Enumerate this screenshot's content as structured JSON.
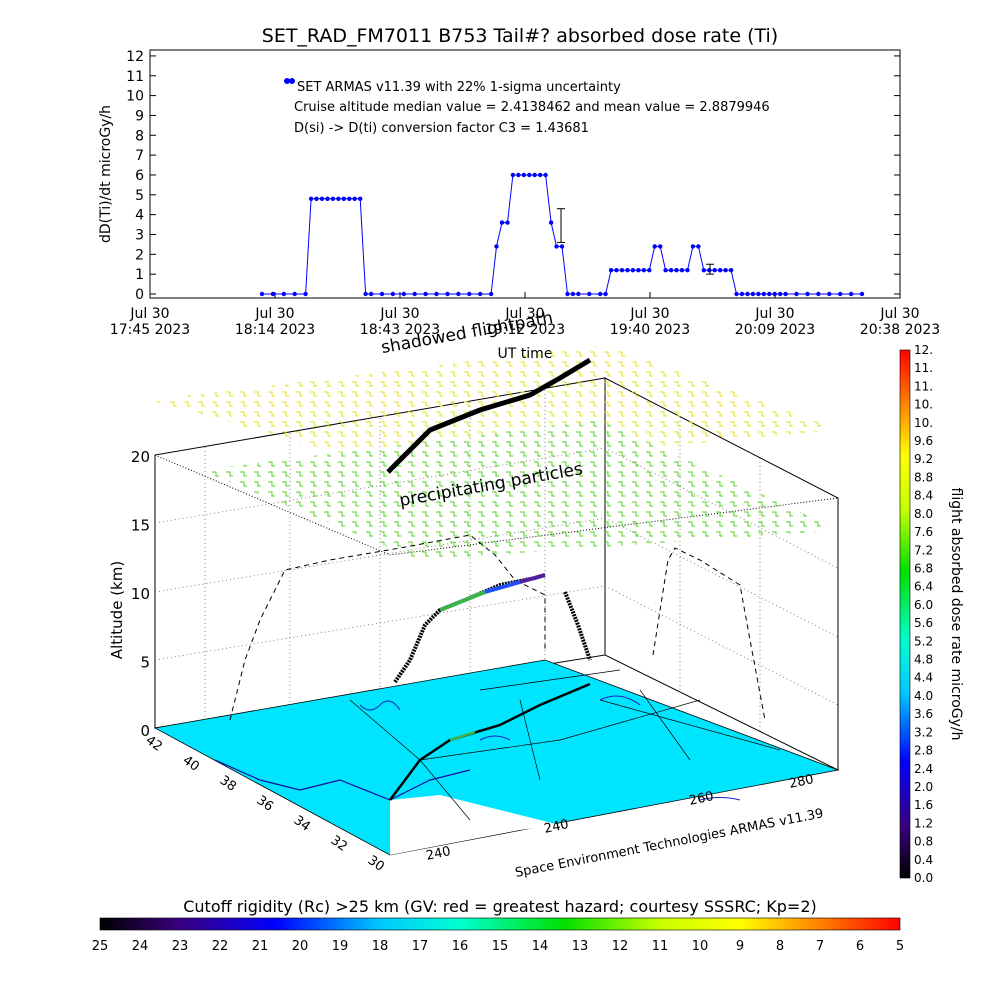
{
  "chart_data": [
    {
      "type": "line",
      "title": "SET_RAD_FM7011  B753 Tail#? absorbed dose rate (Ti)",
      "ylabel": "dD(Ti)/dt microGy/h",
      "xlabel": "UT time",
      "ylim": [
        0,
        12
      ],
      "yticks": [
        "0",
        "1",
        "2",
        "3",
        "4",
        "5",
        "6",
        "7",
        "8",
        "9",
        "10",
        "11",
        "12"
      ],
      "xticks": [
        {
          "top": "Jul 30",
          "bottom": "17:45 2023"
        },
        {
          "top": "Jul 30",
          "bottom": "18:14 2023"
        },
        {
          "top": "Jul 30",
          "bottom": "18:43 2023"
        },
        {
          "top": "Jul 30",
          "bottom": "19:12 2023"
        },
        {
          "top": "Jul 30",
          "bottom": "19:40 2023"
        },
        {
          "top": "Jul 30",
          "bottom": "20:09 2023"
        },
        {
          "top": "Jul 30",
          "bottom": "20:38 2023"
        }
      ],
      "x_minutes_range": [
        0,
        173
      ],
      "series": [
        {
          "name": "SET ARMAS v11.39 with 22% 1-sigma uncertainty",
          "color": "#0000ff",
          "x_minutes": [
            22,
            26,
            30,
            34,
            38,
            40,
            42,
            44,
            46,
            48,
            50,
            52,
            54,
            56,
            58,
            60,
            62,
            66,
            70,
            74,
            78,
            82,
            86,
            90,
            94,
            98,
            102,
            106,
            108,
            110,
            112,
            114,
            116,
            118,
            120,
            122,
            124,
            126,
            128,
            130,
            132,
            134,
            136,
            138,
            142,
            146,
            148,
            150,
            152,
            154,
            156,
            158,
            160,
            162,
            164,
            166,
            168,
            170,
            172,
            174,
            176,
            178,
            180,
            182,
            184,
            186,
            188,
            190,
            192,
            194,
            196,
            198,
            200,
            202,
            204,
            206,
            208,
            210,
            212,
            214,
            218,
            222,
            226,
            230,
            234,
            238,
            242
          ],
          "y": [
            0,
            0,
            0,
            0,
            0,
            4.8,
            4.8,
            4.8,
            4.8,
            4.8,
            4.8,
            4.8,
            4.8,
            4.8,
            4.8,
            0,
            0,
            0,
            0,
            0,
            0,
            0,
            0,
            0,
            0,
            0,
            0,
            0,
            2.4,
            3.6,
            3.6,
            6.0,
            6.0,
            6.0,
            6.0,
            6.0,
            6.0,
            6.0,
            3.6,
            2.4,
            2.4,
            0,
            0,
            0,
            0,
            0,
            0,
            1.2,
            1.2,
            1.2,
            1.2,
            1.2,
            1.2,
            1.2,
            1.2,
            2.4,
            2.4,
            1.2,
            1.2,
            1.2,
            1.2,
            1.2,
            2.4,
            2.4,
            1.2,
            1.2,
            1.2,
            1.2,
            1.2,
            1.2,
            0,
            0,
            0,
            0,
            0,
            0,
            0,
            0,
            0,
            0,
            0,
            0,
            0,
            0,
            0,
            0,
            0
          ]
        }
      ],
      "annotations": [
        "SET ARMAS v11.39 with 22% 1-sigma uncertainty",
        "Cruise altitude median value = 2.4138462 and mean value = 2.8879946",
        "D(si) -> D(ti) conversion factor C3 = 1.43681"
      ]
    },
    {
      "type": "3d-trajectory",
      "zlabel": "Altitude (km)",
      "zticks": [
        "0",
        "5",
        "10",
        "15",
        "20"
      ],
      "lat_ticks": [
        "42",
        "40",
        "38",
        "36",
        "34",
        "32",
        "30"
      ],
      "lon_ticks": [
        "240",
        "240",
        "260",
        "280"
      ],
      "labels": {
        "shadow": "shadowed flightpath",
        "precip": "precipitating particles",
        "credit": "Space Environment Technologies ARMAS v11.39"
      }
    }
  ],
  "colorbar_right": {
    "label": "flight absorbed dose rate microGy/h",
    "ticks": [
      "0.0",
      "0.4",
      "0.8",
      "1.2",
      "1.6",
      "2.0",
      "2.4",
      "2.8",
      "3.2",
      "3.6",
      "4.0",
      "4.4",
      "4.8",
      "5.2",
      "5.6",
      "6.0",
      "6.4",
      "6.8",
      "7.2",
      "7.6",
      "8.0",
      "8.4",
      "8.8",
      "9.2",
      "9.6",
      "10.",
      "10.",
      "11.",
      "11.",
      "12."
    ]
  },
  "colorbar_bottom": {
    "title": "Cutoff rigidity (Rc) >25 km (GV: red = greatest hazard; courtesy SSSRC; Kp=2)",
    "ticks": [
      "25",
      "24",
      "23",
      "22",
      "21",
      "20",
      "19",
      "18",
      "17",
      "16",
      "15",
      "14",
      "13",
      "12",
      "11",
      "10",
      "9",
      "8",
      "7",
      "6",
      "5"
    ]
  }
}
